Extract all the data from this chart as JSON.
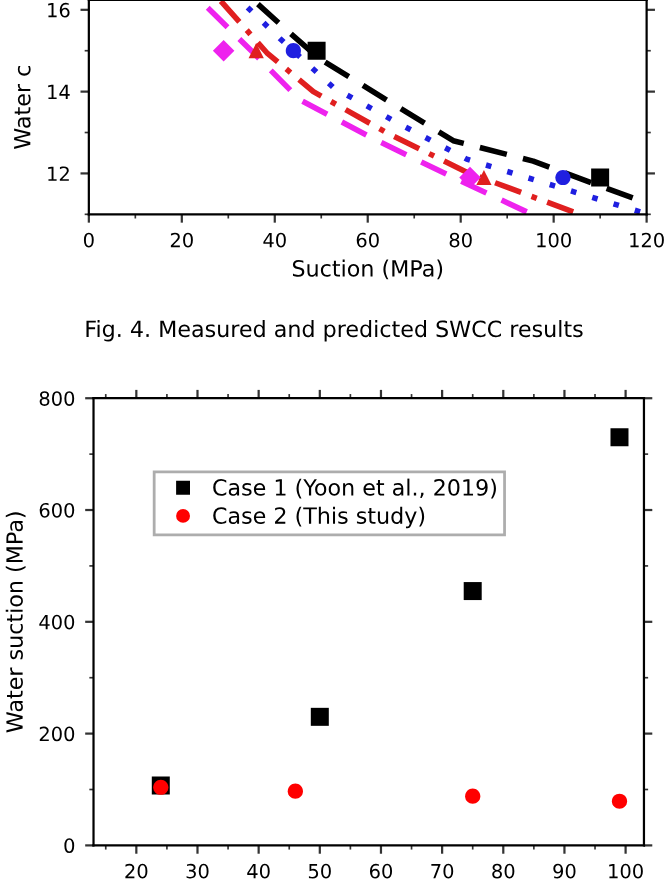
{
  "chart_data": [
    {
      "type": "scatter",
      "xlabel": "Suction (MPa)",
      "ylabel": "Water c",
      "xlim": [
        0,
        120
      ],
      "xticks": [
        0,
        20,
        40,
        60,
        80,
        100,
        120
      ],
      "ylim": [
        11,
        16.24
      ],
      "yticks": [
        12,
        14,
        16
      ],
      "grid": false,
      "legend": false,
      "annotations": [
        "Fig. 4. Measured and predicted SWCC results"
      ],
      "series": [
        {
          "type": "line",
          "color": "#000000",
          "line_style": "dashed",
          "marker": "none",
          "x": [
            35.4,
            42.6,
            49.7,
            64,
            78.4,
            95.6,
            117
          ],
          "values": [
            16.24,
            15.5,
            14.8,
            13.8,
            12.8,
            12.3,
            11.4
          ]
        },
        {
          "type": "line",
          "color": "#1f1fe0",
          "line_style": "dotted",
          "marker": "none",
          "x": [
            32.5,
            41.1,
            52.6,
            67,
            81.3,
            100,
            118.6
          ],
          "values": [
            16.24,
            15.3,
            14.1,
            13.2,
            12.35,
            11.7,
            11.06
          ]
        },
        {
          "type": "line",
          "color": "#e01f1f",
          "line_style": "dashdot",
          "marker": "none",
          "x": [
            28.2,
            38.3,
            48.3,
            64,
            81.3,
            104.2
          ],
          "values": [
            16.24,
            14.95,
            14.0,
            13.0,
            12.03,
            11.06
          ]
        },
        {
          "type": "line",
          "color": "#ee22ee",
          "line_style": "dashed",
          "marker": "none",
          "x": [
            23.9,
            35.4,
            45.4,
            61.2,
            78.4,
            94.2
          ],
          "values": [
            16.24,
            14.95,
            13.8,
            12.85,
            11.9,
            11.06
          ]
        },
        {
          "type": "scatter",
          "color": "#000000",
          "marker": "square",
          "x": [
            49,
            110
          ],
          "values": [
            15,
            11.9
          ]
        },
        {
          "type": "scatter",
          "color": "#1f1fe0",
          "marker": "circle",
          "x": [
            44,
            102
          ],
          "values": [
            15,
            11.9
          ]
        },
        {
          "type": "scatter",
          "color": "#e01f1f",
          "marker": "triangle",
          "x": [
            36,
            85
          ],
          "values": [
            15,
            11.9
          ]
        },
        {
          "type": "scatter",
          "color": "#ee22ee",
          "marker": "diamond",
          "x": [
            29,
            82
          ],
          "values": [
            15,
            11.9
          ]
        }
      ]
    },
    {
      "type": "scatter",
      "ylabel": "Water suction (MPa)",
      "xlim": [
        13,
        103
      ],
      "xticks": [
        20,
        30,
        40,
        50,
        60,
        70,
        80,
        90,
        100
      ],
      "ylim": [
        0,
        800
      ],
      "yticks": [
        0,
        200,
        400,
        600,
        800
      ],
      "grid": false,
      "legend": "top left",
      "series": [
        {
          "name": "Case 1 (Yoon et al., 2019)",
          "color": "#000000",
          "marker": "square",
          "x": [
            24,
            50,
            75,
            99
          ],
          "values": [
            107,
            230,
            455,
            730
          ]
        },
        {
          "name": "Case 2 (This study)",
          "color": "#ff0000",
          "marker": "circle",
          "x": [
            24,
            46,
            75,
            99
          ],
          "values": [
            104,
            97,
            88,
            79
          ]
        }
      ]
    }
  ]
}
